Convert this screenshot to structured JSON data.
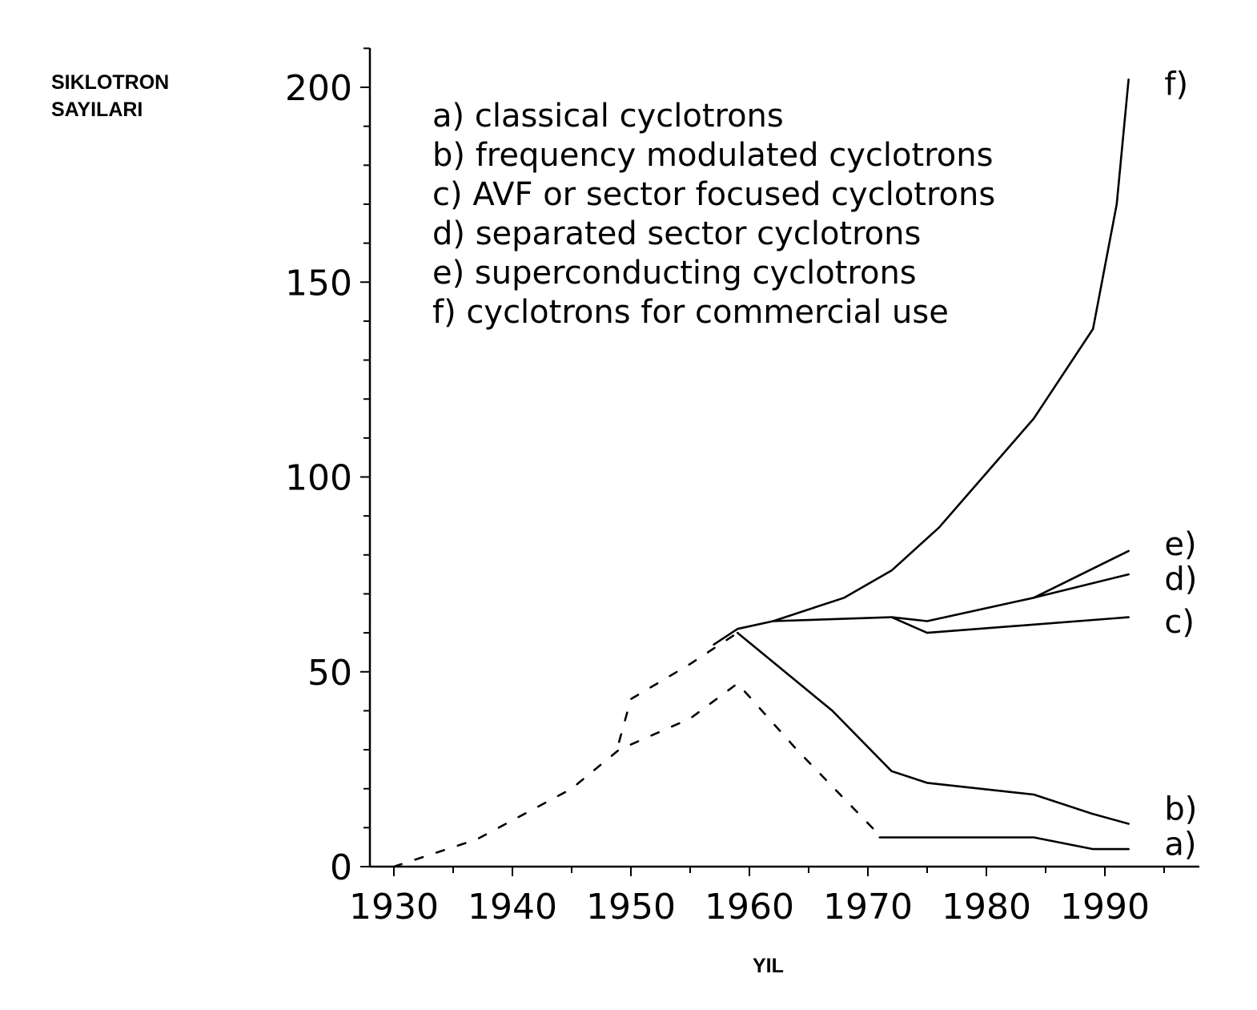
{
  "chart_data": {
    "type": "line",
    "ylabel_lines": [
      "SIKLOTRON",
      "SAYILARI"
    ],
    "xlabel": "YIL",
    "xlim": [
      1930,
      1998
    ],
    "ylim": [
      0,
      210
    ],
    "xticks": [
      1930,
      1940,
      1950,
      1960,
      1970,
      1980,
      1990
    ],
    "yticks": [
      0,
      50,
      100,
      150,
      200
    ],
    "grid": false,
    "legend": [
      "a)  classical cyclotrons",
      "b)  frequency modulated cyclotrons",
      "c)  AVF or sector focused cyclotrons",
      "d)  separated sector cyclotrons",
      "e)  superconducting cyclotrons",
      "f)  cyclotrons for commercial use"
    ],
    "series_labels": [
      {
        "text": "f)",
        "x": 1993,
        "y": 198
      },
      {
        "text": "e)",
        "x": 1993,
        "y": 80
      },
      {
        "text": "d)",
        "x": 1993,
        "y": 71
      },
      {
        "text": "c)",
        "x": 1993,
        "y": 60
      },
      {
        "text": "b)",
        "x": 1993,
        "y": 12
      },
      {
        "text": "a)",
        "x": 1993,
        "y": 3
      }
    ],
    "series": [
      {
        "label": "a)",
        "style": "dashed",
        "x": [
          1930,
          1937,
          1945,
          1949,
          1955,
          1959,
          1964,
          1971
        ],
        "y": [
          0,
          7,
          20,
          30,
          38,
          47,
          30,
          8
        ]
      },
      {
        "label": "a)",
        "style": "solid",
        "x": [
          1971,
          1984,
          1989,
          1992
        ],
        "y": [
          7.5,
          7.5,
          4.5,
          4.5
        ]
      },
      {
        "label": "b)",
        "style": "dashed",
        "x": [
          1949,
          1950,
          1955,
          1959
        ],
        "y": [
          32,
          43,
          52,
          60
        ]
      },
      {
        "label": "b)",
        "style": "solid",
        "x": [
          1959,
          1967,
          1972,
          1975,
          1984,
          1989,
          1992
        ],
        "y": [
          60,
          40,
          24.5,
          21.5,
          18.5,
          13.5,
          11
        ]
      },
      {
        "label": "c)",
        "style": "solid",
        "x": [
          1957,
          1959,
          1962,
          1972,
          1975,
          1992
        ],
        "y": [
          57,
          61,
          63,
          64,
          60,
          64
        ]
      },
      {
        "label": "d)",
        "style": "solid",
        "x": [
          1972,
          1975,
          1984,
          1992
        ],
        "y": [
          64,
          63,
          69,
          75
        ]
      },
      {
        "label": "e)",
        "style": "solid",
        "x": [
          1984,
          1992
        ],
        "y": [
          69,
          81
        ]
      },
      {
        "label": "f)",
        "style": "solid",
        "x": [
          1962,
          1968,
          1972,
          1976,
          1980,
          1984,
          1989,
          1991,
          1992
        ],
        "y": [
          63,
          69,
          76,
          87,
          101,
          115,
          138,
          170,
          202
        ]
      }
    ]
  }
}
